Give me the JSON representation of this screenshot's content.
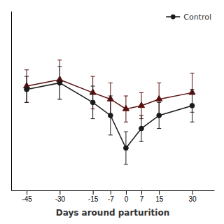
{
  "chart_data": {
    "type": "line",
    "x": [
      -45,
      -30,
      -15,
      -7,
      0,
      7,
      15,
      30
    ],
    "xlabel": "Days around parturition",
    "xlim": [
      -52,
      40
    ],
    "xticks": [
      -45,
      -30,
      -15,
      -7,
      0,
      7,
      15,
      30
    ],
    "ylim": [
      45,
      100
    ],
    "tick_labels": "x",
    "legend": "upper right",
    "series": [
      {
        "color": "#5a1010",
        "marker": "triangle",
        "line_style": "solid",
        "values": [
          77,
          79,
          75,
          73,
          70,
          71,
          73,
          75
        ],
        "errors": [
          5,
          6,
          5,
          5,
          4,
          4,
          5,
          6
        ]
      },
      {
        "name": "Control",
        "color": "#1a1a1a",
        "marker": "circle",
        "line_style": "solid",
        "values": [
          76,
          78,
          72,
          68,
          58,
          64,
          68,
          71
        ],
        "errors": [
          4,
          5,
          5,
          6,
          5,
          4,
          4,
          5
        ]
      }
    ]
  }
}
